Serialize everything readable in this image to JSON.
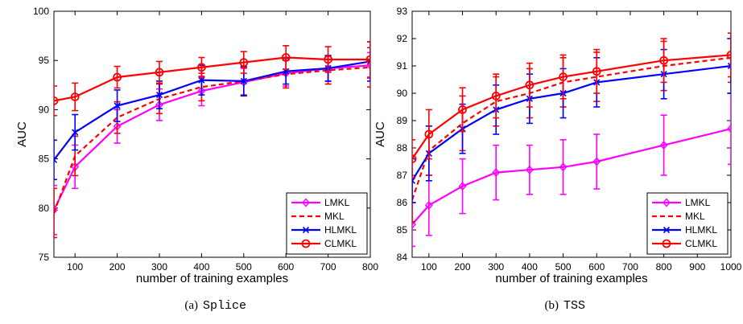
{
  "series_styles": [
    {
      "name": "LMKL",
      "color": "#ff00ff",
      "dash": "",
      "marker": "diamond"
    },
    {
      "name": "MKL",
      "color": "#ff0000",
      "dash": "6,4",
      "marker": "none"
    },
    {
      "name": "HLMKL",
      "color": "#0000ff",
      "dash": "",
      "marker": "x"
    },
    {
      "name": "CLMKL",
      "color": "#ff0000",
      "dash": "",
      "marker": "circle"
    }
  ],
  "chart_data": [
    {
      "type": "line",
      "panel_label": "(a)",
      "dataset": "Splice",
      "xlabel": "number of training examples",
      "ylabel": "AUC",
      "xlim": [
        50,
        800
      ],
      "ylim": [
        75,
        100
      ],
      "xticks": [
        100,
        200,
        300,
        400,
        500,
        600,
        700,
        800
      ],
      "yticks": [
        75,
        80,
        85,
        90,
        95,
        100
      ],
      "legend_position": "bottom-right",
      "x": [
        50,
        100,
        200,
        300,
        400,
        500,
        600,
        700,
        800
      ],
      "series": [
        {
          "name": "LMKL",
          "values": [
            79.8,
            84.2,
            88.3,
            90.5,
            91.9,
            92.8,
            93.7,
            94.2,
            94.5
          ],
          "err": [
            2.5,
            2.2,
            1.7,
            1.6,
            1.5,
            1.4,
            1.3,
            1.3,
            1.3
          ]
        },
        {
          "name": "MKL",
          "values": [
            79.5,
            85.3,
            89.2,
            91.1,
            92.3,
            92.9,
            93.6,
            94.0,
            94.3
          ],
          "err": [
            2.5,
            2.0,
            1.6,
            1.5,
            1.4,
            1.4,
            1.4,
            1.4,
            2.0
          ]
        },
        {
          "name": "HLMKL",
          "values": [
            84.9,
            87.7,
            90.4,
            91.5,
            93.0,
            92.9,
            93.9,
            94.2,
            94.9
          ],
          "err": [
            2.0,
            1.8,
            1.6,
            1.4,
            1.5,
            1.5,
            1.3,
            1.3,
            2.0
          ]
        },
        {
          "name": "CLMKL",
          "values": [
            90.9,
            91.3,
            93.3,
            93.8,
            94.3,
            94.8,
            95.3,
            95.1,
            95.1
          ],
          "err": [
            1.5,
            1.4,
            1.1,
            1.1,
            1.0,
            1.1,
            1.2,
            1.3,
            1.8
          ]
        }
      ]
    },
    {
      "type": "line",
      "panel_label": "(b)",
      "dataset": "TSS",
      "xlabel": "number of training examples",
      "ylabel": "AUC",
      "xlim": [
        50,
        1000
      ],
      "ylim": [
        84,
        93
      ],
      "xticks": [
        100,
        200,
        300,
        400,
        500,
        600,
        700,
        800,
        900,
        1000
      ],
      "yticks": [
        84,
        85,
        86,
        87,
        88,
        89,
        90,
        91,
        92,
        93
      ],
      "legend_position": "bottom-right",
      "x": [
        50,
        100,
        200,
        300,
        400,
        500,
        600,
        800,
        1000
      ],
      "series": [
        {
          "name": "LMKL",
          "values": [
            85.2,
            85.9,
            86.6,
            87.1,
            87.2,
            87.3,
            87.5,
            88.1,
            88.7
          ],
          "err": [
            0.8,
            1.1,
            1.0,
            1.0,
            0.9,
            1.0,
            1.0,
            1.1,
            1.3
          ]
        },
        {
          "name": "MKL",
          "values": [
            86.1,
            87.9,
            88.9,
            89.7,
            90.0,
            90.4,
            90.6,
            91.0,
            91.3
          ],
          "err": [
            0.8,
            0.9,
            1.0,
            0.9,
            0.9,
            0.9,
            0.9,
            0.9,
            0.9
          ]
        },
        {
          "name": "HLMKL",
          "values": [
            86.8,
            87.8,
            88.7,
            89.4,
            89.8,
            90.0,
            90.4,
            90.7,
            91.0
          ],
          "err": [
            0.8,
            1.0,
            0.9,
            0.9,
            0.9,
            0.9,
            0.9,
            0.9,
            1.0
          ]
        },
        {
          "name": "CLMKL",
          "values": [
            87.6,
            88.5,
            89.4,
            89.9,
            90.3,
            90.6,
            90.8,
            91.2,
            91.4
          ],
          "err": [
            0.7,
            0.9,
            0.8,
            0.8,
            0.8,
            0.8,
            0.8,
            0.8,
            0.8
          ]
        }
      ]
    }
  ]
}
